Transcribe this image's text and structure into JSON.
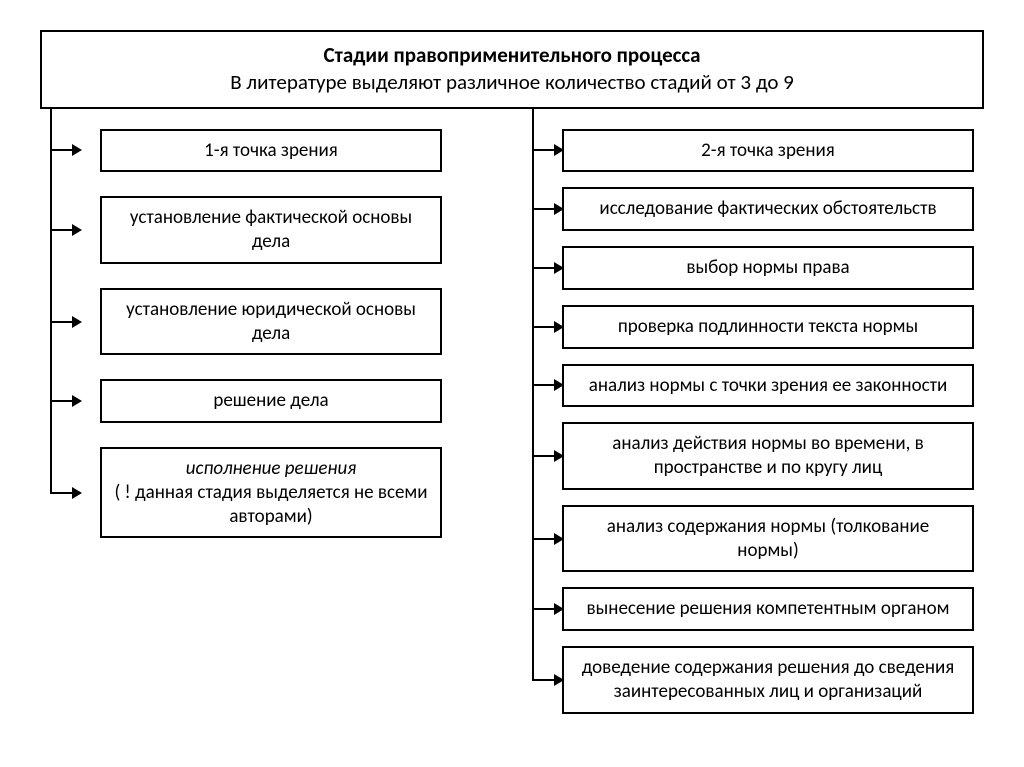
{
  "header": {
    "title": "Стадии правоприменительного процесса",
    "subtitle": "В литературе выделяют различное количество стадий от 3 до 9"
  },
  "left": {
    "items": [
      {
        "text": "1-я точка зрения"
      },
      {
        "text": "установление фактической основы дела"
      },
      {
        "text": "установление юридической основы дела"
      },
      {
        "text": "решение дела"
      },
      {
        "html": "<em>исполнение решения</em><br>( ! данная стадия выделяется не всеми авторами)"
      }
    ]
  },
  "right": {
    "items": [
      {
        "text": "2-я точка зрения"
      },
      {
        "text": "исследование фактических обстоятельств"
      },
      {
        "text": "выбор нормы права"
      },
      {
        "text": "проверка подлинности текста нормы"
      },
      {
        "text": "анализ нормы с точки зрения ее законности"
      },
      {
        "text": "анализ действия нормы во времени, в пространстве и по кругу лиц"
      },
      {
        "text": "анализ содержания нормы (толкование нормы)"
      },
      {
        "text": "вынесение решения компетентным органом"
      },
      {
        "text": "доведение содержания решения до сведения заинтересованных лиц и организаций"
      }
    ]
  },
  "style": {
    "border_color": "#000000",
    "background": "#ffffff",
    "font_family": "Calibri, Arial, sans-serif",
    "header_title_fontsize": 21,
    "header_title_weight": "bold",
    "item_fontsize": 19,
    "border_width": 2,
    "arrow_length": 30,
    "arrow_head": 10
  }
}
